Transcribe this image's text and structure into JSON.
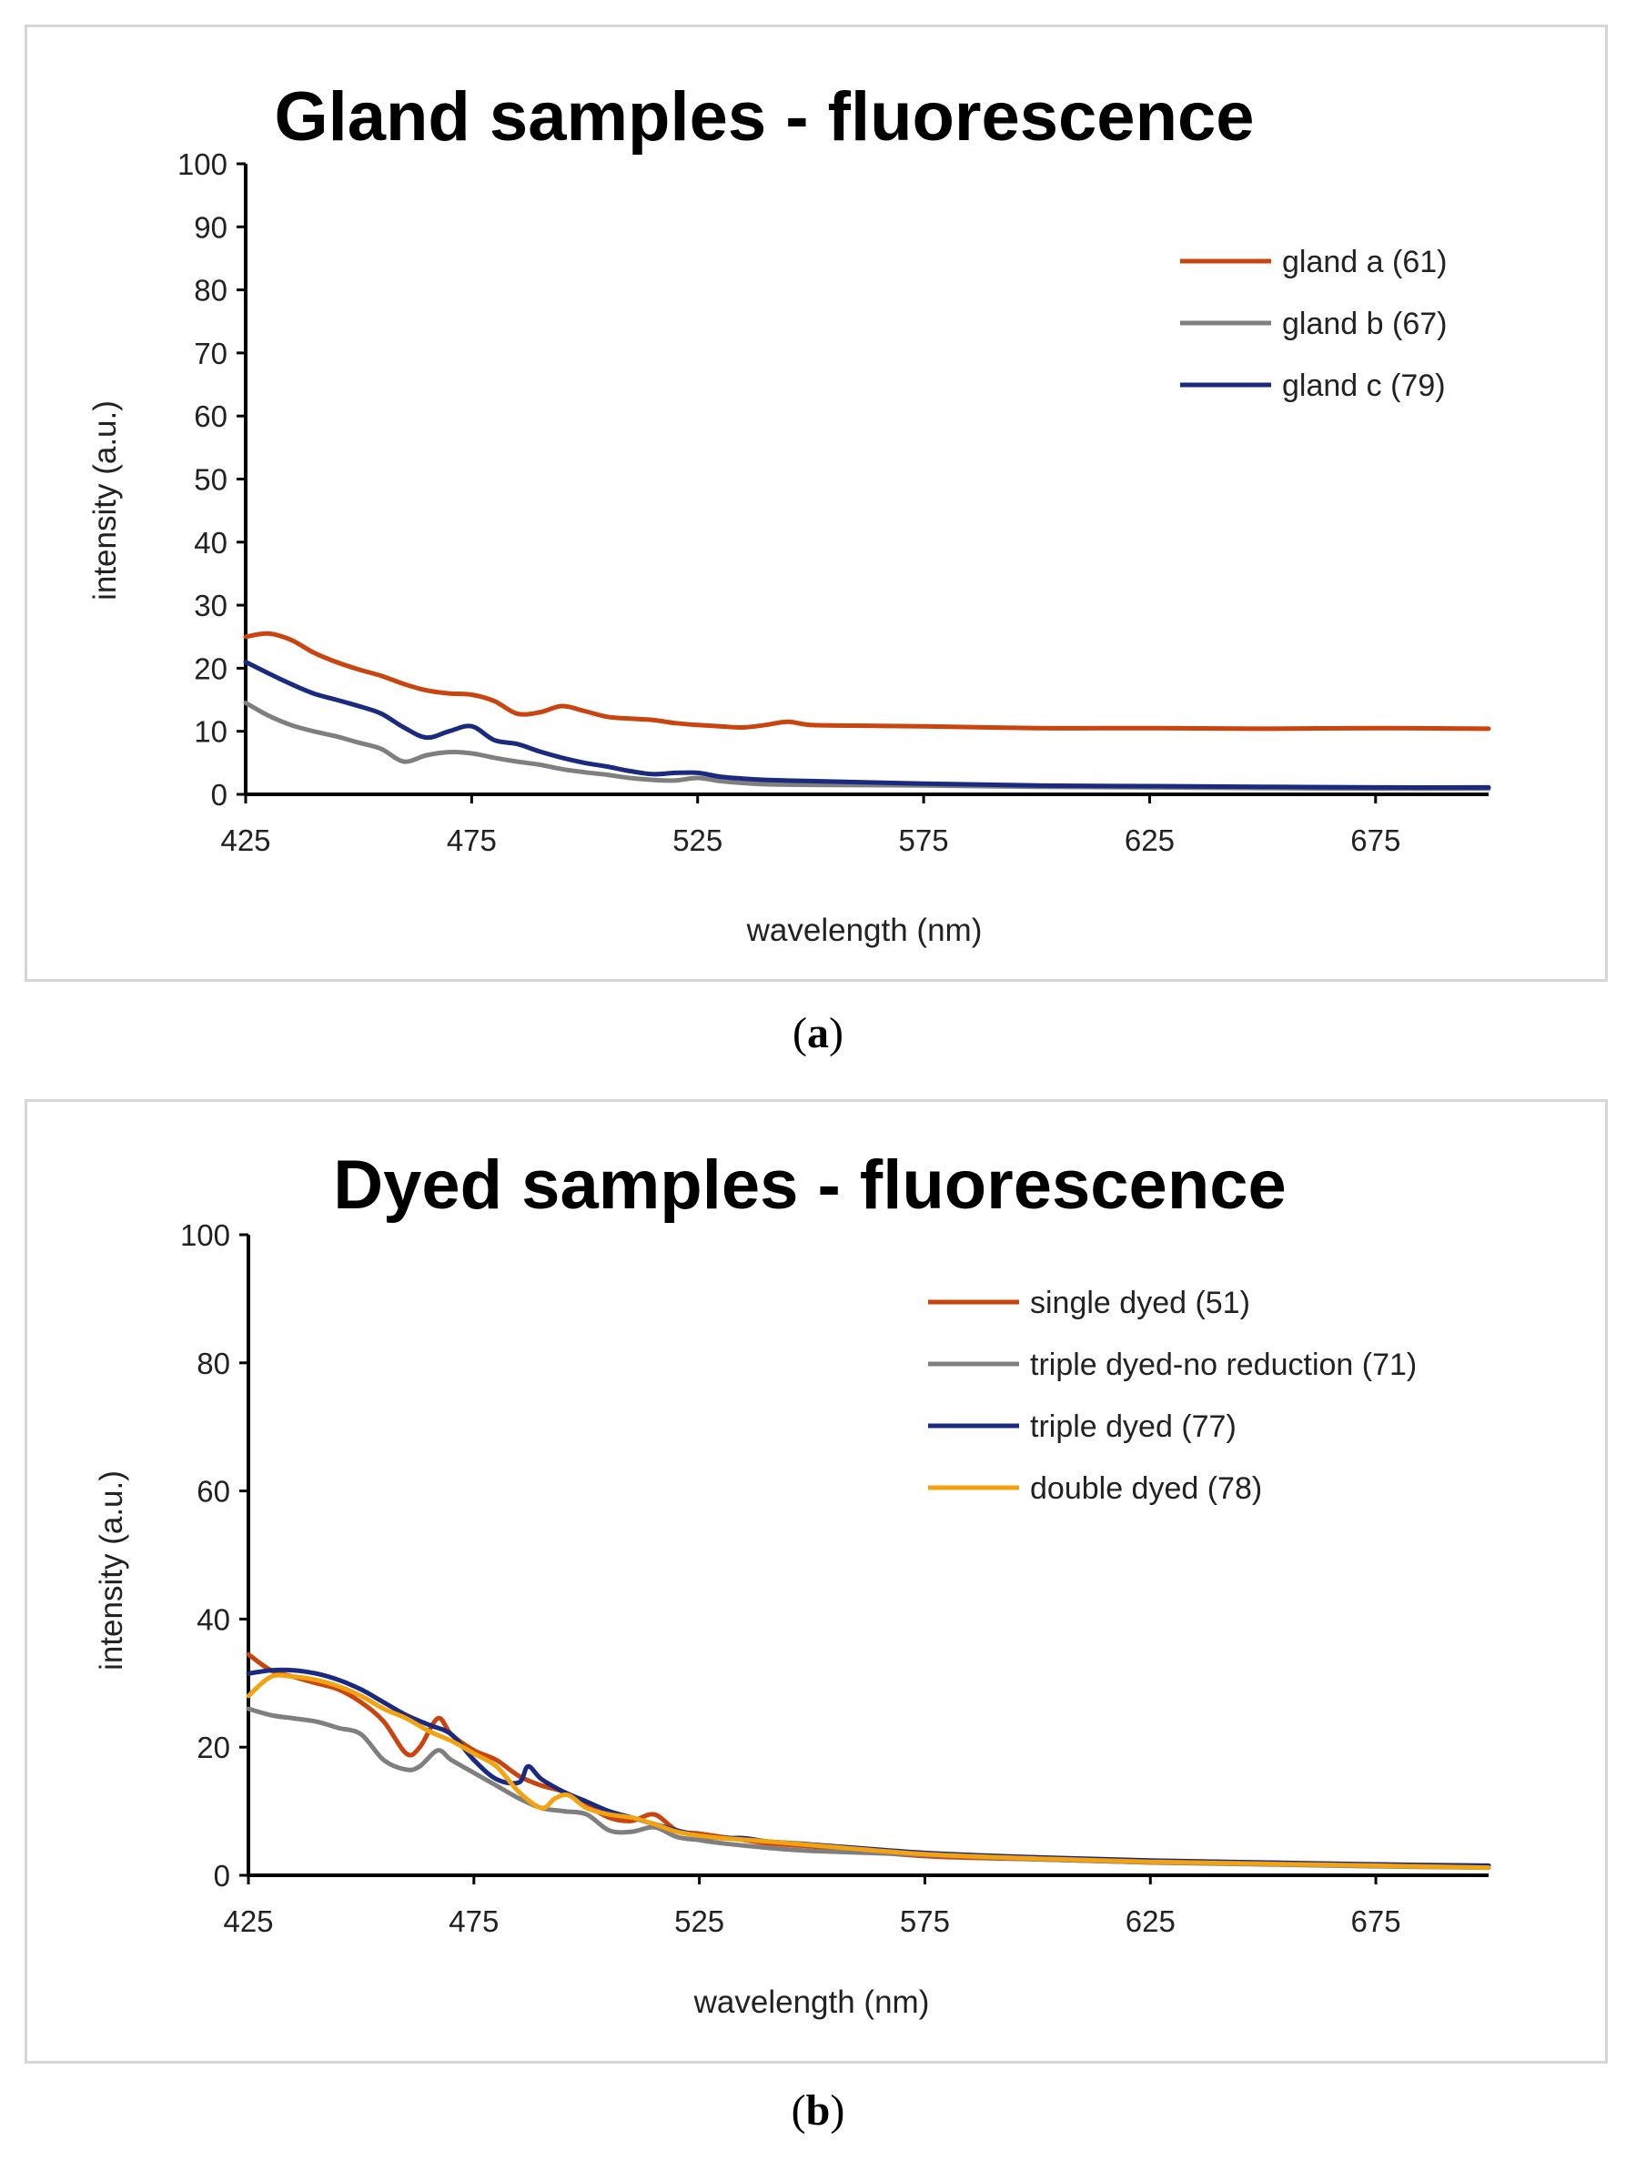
{
  "chart_data": [
    {
      "type": "line",
      "title": "Gland samples - fluorescence",
      "xlabel": "wavelength (nm)",
      "ylabel": "intensity (a.u.)",
      "xlim": [
        425,
        700
      ],
      "ylim": [
        0,
        100
      ],
      "x_ticks": [
        425,
        475,
        525,
        575,
        625,
        675
      ],
      "y_ticks": [
        0,
        10,
        20,
        30,
        40,
        50,
        60,
        70,
        80,
        90,
        100
      ],
      "legend_position": "top-right",
      "panel_label": "a",
      "series": [
        {
          "name": "gland a (61)",
          "color": "#c9440f",
          "x": [
            425,
            430,
            435,
            440,
            445,
            450,
            455,
            460,
            465,
            470,
            475,
            480,
            485,
            490,
            495,
            500,
            505,
            510,
            515,
            520,
            525,
            530,
            535,
            540,
            545,
            550,
            560,
            575,
            600,
            625,
            650,
            675,
            700
          ],
          "y": [
            25,
            25.5,
            24.5,
            22.5,
            21,
            19.8,
            18.8,
            17.5,
            16.5,
            16,
            15.8,
            14.8,
            12.8,
            13,
            14,
            13.2,
            12.3,
            12,
            11.8,
            11.3,
            11,
            10.8,
            10.6,
            11,
            11.5,
            11,
            10.9,
            10.8,
            10.5,
            10.5,
            10.4,
            10.5,
            10.4
          ]
        },
        {
          "name": "gland b (67)",
          "color": "#7f7f7f",
          "x": [
            425,
            430,
            435,
            440,
            445,
            450,
            455,
            460,
            465,
            470,
            475,
            480,
            485,
            490,
            495,
            500,
            505,
            510,
            515,
            520,
            525,
            530,
            535,
            540,
            550,
            575,
            600,
            625,
            650,
            675,
            700
          ],
          "y": [
            14.5,
            12.5,
            11,
            10,
            9.2,
            8.2,
            7.2,
            5.2,
            6.2,
            6.7,
            6.5,
            5.8,
            5.2,
            4.7,
            4,
            3.5,
            3.1,
            2.6,
            2.3,
            2.2,
            2.6,
            2.1,
            1.8,
            1.6,
            1.5,
            1.4,
            1.2,
            1.1,
            1,
            0.9,
            0.9
          ]
        },
        {
          "name": "gland c (79)",
          "color": "#1a2a80",
          "x": [
            425,
            430,
            435,
            440,
            445,
            450,
            455,
            460,
            465,
            470,
            475,
            480,
            485,
            490,
            495,
            500,
            505,
            510,
            515,
            520,
            525,
            530,
            535,
            540,
            550,
            575,
            600,
            625,
            650,
            675,
            700
          ],
          "y": [
            21,
            19.2,
            17.5,
            16,
            15,
            14,
            12.8,
            10.6,
            9,
            10,
            10.8,
            8.6,
            8,
            6.8,
            5.8,
            5,
            4.4,
            3.7,
            3.2,
            3.4,
            3.4,
            2.8,
            2.5,
            2.3,
            2.1,
            1.7,
            1.4,
            1.3,
            1.2,
            1.1,
            1.1
          ]
        }
      ]
    },
    {
      "type": "line",
      "title": "Dyed samples - fluorescence",
      "xlabel": "wavelength (nm)",
      "ylabel": "intensity (a.u.)",
      "xlim": [
        425,
        700
      ],
      "ylim": [
        0,
        100
      ],
      "x_ticks": [
        425,
        475,
        525,
        575,
        625,
        675
      ],
      "y_ticks": [
        0,
        20,
        40,
        60,
        80,
        100
      ],
      "legend_position": "top-right",
      "panel_label": "b",
      "series": [
        {
          "name": "single dyed (51)",
          "color": "#c9440f",
          "x": [
            425,
            430,
            435,
            440,
            445,
            450,
            455,
            460,
            463,
            467,
            470,
            475,
            480,
            485,
            490,
            495,
            500,
            505,
            510,
            515,
            520,
            525,
            530,
            535,
            540,
            550,
            575,
            600,
            625,
            650,
            675,
            700
          ],
          "y": [
            34.5,
            32,
            31,
            30,
            29,
            27,
            24,
            19,
            20,
            24.5,
            22,
            19.5,
            18,
            15.5,
            14,
            13,
            11,
            9,
            8.5,
            9.5,
            7,
            6.5,
            6,
            5.5,
            5,
            4.5,
            3,
            2.5,
            2,
            1.8,
            1.5,
            1.3
          ]
        },
        {
          "name": "triple dyed-no reduction (71)",
          "color": "#7f7f7f",
          "x": [
            425,
            430,
            435,
            440,
            445,
            450,
            455,
            460,
            463,
            467,
            470,
            475,
            480,
            485,
            490,
            495,
            500,
            505,
            510,
            515,
            520,
            525,
            530,
            540,
            550,
            575,
            600,
            625,
            650,
            675,
            700
          ],
          "y": [
            26,
            25,
            24.5,
            24,
            23,
            22,
            18,
            16.5,
            17,
            19.5,
            18,
            16,
            14,
            12,
            10.5,
            10,
            9.5,
            7,
            6.8,
            7.5,
            6,
            5.5,
            5,
            4.3,
            3.8,
            3.2,
            2.5,
            2,
            1.7,
            1.4,
            1.2
          ]
        },
        {
          "name": "triple dyed (77)",
          "color": "#1a2a80",
          "x": [
            425,
            430,
            435,
            440,
            445,
            450,
            455,
            460,
            465,
            470,
            475,
            480,
            485,
            487,
            490,
            495,
            500,
            505,
            510,
            515,
            520,
            525,
            530,
            535,
            540,
            550,
            575,
            600,
            625,
            650,
            675,
            700
          ],
          "y": [
            31.5,
            32,
            32,
            31.5,
            30.5,
            29,
            27,
            25,
            23.5,
            22,
            18,
            15,
            14.5,
            17,
            15,
            13,
            11.5,
            10,
            9,
            8,
            7,
            6.2,
            5.8,
            5.8,
            5.3,
            4.8,
            3.5,
            2.8,
            2.3,
            2,
            1.7,
            1.5
          ]
        },
        {
          "name": "double dyed (78)",
          "color": "#f2a30f",
          "x": [
            425,
            430,
            435,
            440,
            445,
            450,
            455,
            460,
            465,
            470,
            475,
            480,
            485,
            490,
            493,
            496,
            500,
            505,
            510,
            515,
            520,
            525,
            530,
            540,
            550,
            575,
            600,
            625,
            650,
            675,
            700
          ],
          "y": [
            28,
            31,
            31,
            30.5,
            29.5,
            28,
            26,
            24.5,
            22.5,
            21,
            19,
            17,
            13,
            10.5,
            12,
            12.5,
            10.5,
            9.5,
            9,
            8,
            6.8,
            6.2,
            5.8,
            5.3,
            4.7,
            3.3,
            2.6,
            2.1,
            1.8,
            1.5,
            1.2
          ]
        }
      ]
    }
  ]
}
